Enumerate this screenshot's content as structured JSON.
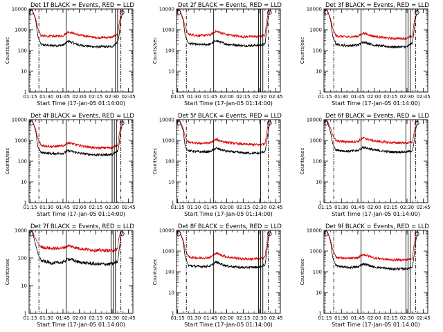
{
  "chart_data": [
    {
      "type": "line",
      "title": "Det 1f BLACK = Events, RED = LLD",
      "xlabel": "Start Time (17-Jan-05 01:14:00)",
      "ylabel": "Counts/sec",
      "xticks": [
        "01:15",
        "01:30",
        "01:45",
        "02:00",
        "02:15",
        "02:30",
        "02:45"
      ],
      "yticks": [
        "1",
        "10",
        "100",
        "1000",
        "10000"
      ],
      "ylim": [
        1,
        10000
      ],
      "yscale": "log",
      "dashed_lines": [
        "01:23",
        "02:38"
      ],
      "solid_lines": [
        "01:48",
        "02:33",
        "02:35"
      ],
      "series": [
        {
          "color": "#000000",
          "x": [
            "01:14",
            "01:15",
            "01:17",
            "01:20",
            "01:22",
            "01:25",
            "01:35",
            "01:45",
            "01:50",
            "02:00",
            "02:15",
            "02:30",
            "02:35",
            "02:36",
            "02:38",
            "02:40"
          ],
          "y": [
            10000,
            10000,
            9000,
            3000,
            500,
            190,
            170,
            180,
            280,
            180,
            150,
            155,
            250,
            400,
            3000,
            9000
          ]
        },
        {
          "color": "#dd0000",
          "x": [
            "01:14",
            "01:15",
            "01:17",
            "01:20",
            "01:22",
            "01:25",
            "01:35",
            "01:45",
            "01:50",
            "02:00",
            "02:15",
            "02:30",
            "02:35",
            "02:36",
            "02:38",
            "02:40"
          ],
          "y": [
            10000,
            10000,
            9000,
            3500,
            1200,
            500,
            480,
            520,
            800,
            550,
            420,
            430,
            600,
            1500,
            6000,
            10000
          ]
        }
      ]
    },
    {
      "type": "line",
      "title": "Det 2f BLACK = Events, RED = LLD",
      "xlabel": "Start Time (17-Jan-05 01:14:00)",
      "ylabel": "Counts/sec",
      "xticks": [
        "01:15",
        "01:30",
        "01:45",
        "02:00",
        "02:15",
        "02:30",
        "02:45"
      ],
      "yticks": [
        "1",
        "10",
        "100",
        "1000",
        "10000"
      ],
      "ylim": [
        1,
        10000
      ],
      "yscale": "log",
      "dashed_lines": [
        "01:23",
        "02:38"
      ],
      "solid_lines": [
        "01:48",
        "02:29",
        "02:31",
        "02:33"
      ],
      "series": [
        {
          "color": "#000000",
          "x": [
            "01:14",
            "01:15",
            "01:17",
            "01:20",
            "01:22",
            "01:25",
            "01:35",
            "01:45",
            "01:50",
            "02:00",
            "02:15",
            "02:30",
            "02:35",
            "02:36",
            "02:38",
            "02:40"
          ],
          "y": [
            10000,
            10000,
            9000,
            3000,
            500,
            220,
            190,
            200,
            300,
            200,
            170,
            180,
            200,
            600,
            4000,
            9000
          ]
        },
        {
          "color": "#dd0000",
          "x": [
            "01:14",
            "01:15",
            "01:17",
            "01:20",
            "01:22",
            "01:25",
            "01:35",
            "01:45",
            "01:50",
            "02:00",
            "02:15",
            "02:30",
            "02:35",
            "02:36",
            "02:38",
            "02:40"
          ],
          "y": [
            10000,
            10000,
            9000,
            3500,
            1300,
            600,
            520,
            560,
            850,
            580,
            460,
            470,
            550,
            1800,
            7000,
            10000
          ]
        }
      ]
    },
    {
      "type": "line",
      "title": "Det 3f BLACK = Events, RED = LLD",
      "xlabel": "Start Time (17-Jan-05 01:14:00)",
      "ylabel": "Counts/sec",
      "xticks": [
        "01:15",
        "01:30",
        "01:45",
        "02:00",
        "02:15",
        "02:30",
        "02:45"
      ],
      "yticks": [
        "1",
        "10",
        "100",
        "1000",
        "10000"
      ],
      "ylim": [
        1,
        10000
      ],
      "yscale": "log",
      "dashed_lines": [
        "01:23",
        "02:38"
      ],
      "solid_lines": [
        "01:48",
        "02:29",
        "02:31",
        "02:33"
      ],
      "series": [
        {
          "color": "#000000",
          "x": [
            "01:14",
            "01:15",
            "01:17",
            "01:20",
            "01:22",
            "01:25",
            "01:35",
            "01:45",
            "01:50",
            "02:00",
            "02:15",
            "02:30",
            "02:35",
            "02:36",
            "02:38",
            "02:40"
          ],
          "y": [
            10000,
            10000,
            9000,
            3000,
            500,
            200,
            170,
            180,
            260,
            180,
            150,
            150,
            230,
            600,
            4000,
            9000
          ]
        },
        {
          "color": "#dd0000",
          "x": [
            "01:14",
            "01:15",
            "01:17",
            "01:20",
            "01:22",
            "01:25",
            "01:35",
            "01:45",
            "01:50",
            "02:00",
            "02:15",
            "02:30",
            "02:35",
            "02:36",
            "02:38",
            "02:40"
          ],
          "y": [
            10000,
            10000,
            9000,
            3500,
            1200,
            500,
            450,
            480,
            700,
            480,
            380,
            380,
            500,
            1500,
            7000,
            10000
          ]
        }
      ]
    },
    {
      "type": "line",
      "title": "Det 4f BLACK = Events, RED = LLD",
      "xlabel": "Start Time (17-Jan-05 01:14:00)",
      "ylabel": "Counts/sec",
      "xticks": [
        "01:15",
        "01:30",
        "01:45",
        "02:00",
        "02:15",
        "02:30",
        "02:45"
      ],
      "yticks": [
        "1",
        "10",
        "100",
        "1000",
        "10000"
      ],
      "ylim": [
        1,
        10000
      ],
      "yscale": "log",
      "dashed_lines": [
        "01:23",
        "02:38"
      ],
      "solid_lines": [
        "01:48",
        "02:30",
        "02:32",
        "02:34"
      ],
      "series": [
        {
          "color": "#000000",
          "x": [
            "01:14",
            "01:15",
            "01:17",
            "01:20",
            "01:22",
            "01:25",
            "01:35",
            "01:45",
            "01:50",
            "02:00",
            "02:15",
            "02:30",
            "02:35",
            "02:36",
            "02:38",
            "02:40"
          ],
          "y": [
            10000,
            10000,
            9000,
            3000,
            500,
            260,
            230,
            240,
            320,
            240,
            200,
            210,
            300,
            500,
            3000,
            9000
          ]
        },
        {
          "color": "#dd0000",
          "x": [
            "01:14",
            "01:15",
            "01:17",
            "01:20",
            "01:22",
            "01:25",
            "01:35",
            "01:45",
            "01:50",
            "02:00",
            "02:15",
            "02:30",
            "02:35",
            "02:36",
            "02:38",
            "02:40"
          ],
          "y": [
            10000,
            10000,
            9000,
            3500,
            1300,
            580,
            500,
            540,
            780,
            560,
            430,
            450,
            600,
            1400,
            6000,
            10000
          ]
        }
      ]
    },
    {
      "type": "line",
      "title": "Det 5f BLACK = Events, RED = LLD",
      "xlabel": "Start Time (17-Jan-05 01:14:00)",
      "ylabel": "Counts/sec",
      "xticks": [
        "01:15",
        "01:30",
        "01:45",
        "02:00",
        "02:15",
        "02:30",
        "02:45"
      ],
      "yticks": [
        "1",
        "10",
        "100",
        "1000",
        "10000"
      ],
      "ylim": [
        1,
        10000
      ],
      "yscale": "log",
      "dashed_lines": [
        "01:23",
        "02:38"
      ],
      "solid_lines": [
        "01:48",
        "02:31"
      ],
      "series": [
        {
          "color": "#000000",
          "x": [
            "01:14",
            "01:15",
            "01:17",
            "01:20",
            "01:22",
            "01:25",
            "01:35",
            "01:45",
            "01:50",
            "02:00",
            "02:15",
            "02:30",
            "02:35",
            "02:36",
            "02:38",
            "02:40"
          ],
          "y": [
            10000,
            10000,
            9000,
            3000,
            500,
            320,
            280,
            290,
            420,
            300,
            250,
            240,
            300,
            600,
            3000,
            9000
          ]
        },
        {
          "color": "#dd0000",
          "x": [
            "01:14",
            "01:15",
            "01:17",
            "01:20",
            "01:22",
            "01:25",
            "01:35",
            "01:45",
            "01:50",
            "02:00",
            "02:15",
            "02:30",
            "02:35",
            "02:36",
            "02:38",
            "02:40"
          ],
          "y": [
            10000,
            10000,
            9000,
            4000,
            1400,
            800,
            720,
            760,
            1100,
            800,
            650,
            620,
            700,
            1600,
            7000,
            10000
          ]
        }
      ]
    },
    {
      "type": "line",
      "title": "Det 6f BLACK = Events, RED = LLD",
      "xlabel": "Start Time (17-Jan-05 01:14:00)",
      "ylabel": "Counts/sec",
      "xticks": [
        "01:15",
        "01:30",
        "01:45",
        "02:00",
        "02:15",
        "02:30",
        "02:45"
      ],
      "yticks": [
        "1",
        "10",
        "100",
        "1000",
        "10000"
      ],
      "ylim": [
        1,
        10000
      ],
      "yscale": "log",
      "dashed_lines": [
        "01:23",
        "02:38"
      ],
      "solid_lines": [
        "01:48",
        "02:29",
        "02:33"
      ],
      "series": [
        {
          "color": "#000000",
          "x": [
            "01:14",
            "01:15",
            "01:17",
            "01:20",
            "01:22",
            "01:25",
            "01:35",
            "01:45",
            "01:50",
            "02:00",
            "02:15",
            "02:30",
            "02:35",
            "02:36",
            "02:38",
            "02:40"
          ],
          "y": [
            10000,
            10000,
            8000,
            2500,
            700,
            350,
            300,
            320,
            480,
            340,
            280,
            280,
            320,
            600,
            3500,
            9000
          ]
        },
        {
          "color": "#dd0000",
          "x": [
            "01:14",
            "01:15",
            "01:17",
            "01:20",
            "01:22",
            "01:25",
            "01:35",
            "01:45",
            "01:50",
            "02:00",
            "02:15",
            "02:30",
            "02:35",
            "02:36",
            "02:38",
            "02:40"
          ],
          "y": [
            10000,
            10000,
            9000,
            4000,
            1800,
            950,
            850,
            900,
            1300,
            950,
            780,
            760,
            820,
            1700,
            7000,
            10000
          ]
        }
      ]
    },
    {
      "type": "line",
      "title": "Det 7f BLACK = Events, RED = LLD",
      "xlabel": "Start Time (17-Jan-05 01:14:00)",
      "ylabel": "Counts/sec",
      "xticks": [
        "01:15",
        "01:30",
        "01:45",
        "02:00",
        "02:15",
        "02:30",
        "02:45"
      ],
      "yticks": [
        "1",
        "10",
        "100",
        "1000"
      ],
      "ylim": [
        1,
        1000
      ],
      "yscale": "log",
      "dashed_lines": [
        "01:23",
        "02:38"
      ],
      "solid_lines": [
        "01:48",
        "02:29",
        "02:31",
        "02:33"
      ],
      "series": [
        {
          "color": "#000000",
          "x": [
            "01:14",
            "01:15",
            "01:17",
            "01:20",
            "01:22",
            "01:25",
            "01:35",
            "01:45",
            "01:50",
            "02:00",
            "02:15",
            "02:30",
            "02:35",
            "02:36",
            "02:38",
            "02:40"
          ],
          "y": [
            1000,
            1000,
            900,
            300,
            150,
            80,
            65,
            70,
            95,
            70,
            60,
            60,
            75,
            150,
            600,
            950
          ]
        },
        {
          "color": "#dd0000",
          "x": [
            "01:14",
            "01:15",
            "01:17",
            "01:20",
            "01:22",
            "01:25",
            "01:35",
            "01:45",
            "01:50",
            "02:00",
            "02:15",
            "02:30",
            "02:35",
            "02:36",
            "02:38",
            "02:40"
          ],
          "y": [
            1000,
            1000,
            950,
            500,
            350,
            250,
            220,
            230,
            280,
            220,
            190,
            185,
            210,
            500,
            900,
            1000
          ]
        }
      ]
    },
    {
      "type": "line",
      "title": "Det 8f BLACK = Events, RED = LLD",
      "xlabel": "Start Time (17-Jan-05 01:14:00)",
      "ylabel": "Counts/sec",
      "xticks": [
        "01:15",
        "01:30",
        "01:45",
        "02:00",
        "02:15",
        "02:30",
        "02:45"
      ],
      "yticks": [
        "1",
        "10",
        "100",
        "1000",
        "10000"
      ],
      "ylim": [
        1,
        10000
      ],
      "yscale": "log",
      "dashed_lines": [
        "01:23",
        "02:38"
      ],
      "solid_lines": [
        "01:48",
        "02:29",
        "02:31",
        "02:33"
      ],
      "series": [
        {
          "color": "#000000",
          "x": [
            "01:14",
            "01:15",
            "01:17",
            "01:20",
            "01:22",
            "01:25",
            "01:35",
            "01:45",
            "01:50",
            "02:00",
            "02:15",
            "02:30",
            "02:35",
            "02:36",
            "02:38",
            "02:40"
          ],
          "y": [
            10000,
            10000,
            9000,
            3000,
            500,
            200,
            180,
            190,
            300,
            190,
            160,
            170,
            220,
            500,
            4000,
            9000
          ]
        },
        {
          "color": "#dd0000",
          "x": [
            "01:14",
            "01:15",
            "01:17",
            "01:20",
            "01:22",
            "01:25",
            "01:35",
            "01:45",
            "01:50",
            "02:00",
            "02:15",
            "02:30",
            "02:35",
            "02:36",
            "02:38",
            "02:40"
          ],
          "y": [
            10000,
            10000,
            9000,
            3500,
            1200,
            520,
            460,
            500,
            800,
            520,
            420,
            420,
            500,
            1500,
            7000,
            10000
          ]
        }
      ]
    },
    {
      "type": "line",
      "title": "Det 9f BLACK = Events, RED = LLD",
      "xlabel": "Start Time (17-Jan-05 01:14:00)",
      "ylabel": "Counts/sec",
      "xticks": [
        "01:15",
        "01:30",
        "01:45",
        "02:00",
        "02:15",
        "02:30",
        "02:45"
      ],
      "yticks": [
        "1",
        "10",
        "100",
        "1000",
        "10000"
      ],
      "ylim": [
        1,
        10000
      ],
      "yscale": "log",
      "dashed_lines": [
        "01:23",
        "02:38"
      ],
      "solid_lines": [
        "01:48",
        "02:29",
        "02:31",
        "02:33"
      ],
      "series": [
        {
          "color": "#000000",
          "x": [
            "01:14",
            "01:15",
            "01:17",
            "01:20",
            "01:22",
            "01:25",
            "01:35",
            "01:45",
            "01:50",
            "02:00",
            "02:15",
            "02:30",
            "02:35",
            "02:36",
            "02:38",
            "02:40"
          ],
          "y": [
            10000,
            10000,
            9000,
            3000,
            500,
            200,
            160,
            170,
            250,
            170,
            140,
            140,
            180,
            400,
            3000,
            9000
          ]
        },
        {
          "color": "#dd0000",
          "x": [
            "01:14",
            "01:15",
            "01:17",
            "01:20",
            "01:22",
            "01:25",
            "01:35",
            "01:45",
            "01:50",
            "02:00",
            "02:15",
            "02:30",
            "02:35",
            "02:36",
            "02:38",
            "02:40"
          ],
          "y": [
            10000,
            10000,
            9000,
            3500,
            1200,
            500,
            440,
            470,
            700,
            470,
            380,
            380,
            460,
            1400,
            7000,
            10000
          ]
        }
      ]
    }
  ]
}
